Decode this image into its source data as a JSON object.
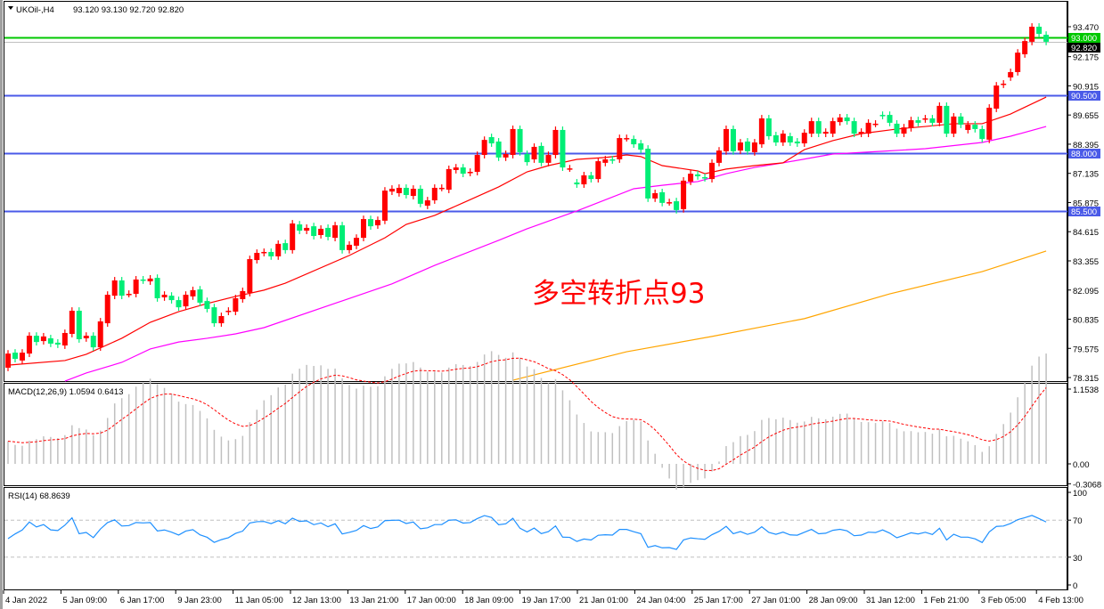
{
  "header": {
    "symbol_text": "UKOil-,H4",
    "ohlc_text": "93.120 93.130 92.720 92.820"
  },
  "annotation_text": "多空转折点93",
  "macd_panel": {
    "title": "MACD(12,26,9) 1.0594 0.6413",
    "ticks": [
      {
        "v": 1.1538,
        "label": "1.1538"
      },
      {
        "v": 0,
        "label": "0.00"
      },
      {
        "v": -0.3068,
        "label": "-0.3068"
      }
    ]
  },
  "rsi_panel": {
    "title": "RSI(14) 68.8639",
    "ticks": [
      {
        "v": 100,
        "label": "100"
      },
      {
        "v": 70,
        "label": "70"
      },
      {
        "v": 30,
        "label": "30"
      },
      {
        "v": 0,
        "label": "0"
      }
    ]
  },
  "chart_data": {
    "type": "candlestick",
    "symbol": "UKOil-",
    "timeframe": "H4",
    "colors": {
      "bull": "#ff0000",
      "bear": "#00ee76",
      "ma_fast": "#ff0000",
      "ma_mid": "#ff00ff",
      "ma_slow": "#ffa500",
      "macd_hist": "#c0c0c0",
      "macd_signal": "#ff0000",
      "rsi": "#1e90ff"
    },
    "price_ticks": [
      "93.470",
      "92.175",
      "90.915",
      "89.655",
      "88.395",
      "87.135",
      "85.875",
      "84.615",
      "83.355",
      "82.095",
      "80.835",
      "79.575",
      "78.315"
    ],
    "ylim": [
      78.315,
      93.47
    ],
    "time_labels": [
      "4 Jan 2022",
      "5 Jan 09:00",
      "6 Jan 17:00",
      "9 Jan 23:00",
      "11 Jan 05:00",
      "12 Jan 13:00",
      "13 Jan 21:00",
      "17 Jan 00:00",
      "18 Jan 09:00",
      "19 Jan 17:00",
      "21 Jan 01:00",
      "24 Jan 04:00",
      "25 Jan 17:00",
      "27 Jan 01:00",
      "28 Jan 09:00",
      "31 Jan 12:00",
      "1 Feb 21:00",
      "3 Feb 05:00",
      "4 Feb 13:00"
    ],
    "levels": [
      {
        "price": 93.0,
        "label": "93.000",
        "color": "#00c800",
        "label_bg": "#00c800"
      },
      {
        "price": 92.82,
        "label": "92.820",
        "color": "#c0c0c0",
        "label_bg": "#000000"
      },
      {
        "price": 90.5,
        "label": "90.500",
        "color": "#4a5ae8",
        "label_bg": "#4a5ae8"
      },
      {
        "price": 88.0,
        "label": "88.000",
        "color": "#4a5ae8",
        "label_bg": "#4a5ae8"
      },
      {
        "price": 85.5,
        "label": "85.500",
        "color": "#4a5ae8",
        "label_bg": "#4a5ae8"
      }
    ],
    "candles_open_close": [
      [
        78.74,
        79.35
      ],
      [
        79.39,
        79.12
      ],
      [
        79.05,
        79.39
      ],
      [
        79.35,
        80.12
      ],
      [
        80.12,
        79.85
      ],
      [
        79.89,
        80.09
      ],
      [
        80.01,
        79.78
      ],
      [
        79.82,
        79.74
      ],
      [
        79.7,
        80.24
      ],
      [
        80.2,
        81.2
      ],
      [
        81.2,
        79.97
      ],
      [
        80.01,
        80.12
      ],
      [
        80.12,
        79.62
      ],
      [
        79.62,
        80.74
      ],
      [
        80.66,
        81.89
      ],
      [
        81.85,
        82.51
      ],
      [
        82.51,
        81.85
      ],
      [
        81.93,
        81.93
      ],
      [
        81.93,
        82.55
      ],
      [
        82.55,
        82.51
      ],
      [
        82.47,
        82.59
      ],
      [
        82.62,
        81.74
      ],
      [
        81.78,
        81.89
      ],
      [
        81.85,
        81.66
      ],
      [
        81.66,
        81.35
      ],
      [
        81.39,
        81.89
      ],
      [
        81.82,
        82.09
      ],
      [
        82.12,
        81.55
      ],
      [
        81.62,
        81.28
      ],
      [
        81.35,
        80.66
      ],
      [
        80.66,
        80.97
      ],
      [
        81.16,
        81.2
      ],
      [
        81.16,
        81.74
      ],
      [
        81.7,
        82.05
      ],
      [
        81.97,
        83.43
      ],
      [
        83.39,
        83.7
      ],
      [
        83.7,
        83.74
      ],
      [
        83.74,
        83.55
      ],
      [
        83.55,
        84.09
      ],
      [
        84.12,
        83.82
      ],
      [
        83.82,
        84.97
      ],
      [
        84.93,
        84.66
      ],
      [
        84.66,
        84.78
      ],
      [
        84.85,
        84.43
      ],
      [
        84.47,
        84.74
      ],
      [
        84.78,
        84.39
      ],
      [
        84.35,
        84.89
      ],
      [
        84.89,
        83.82
      ],
      [
        83.82,
        84.05
      ],
      [
        84.01,
        84.35
      ],
      [
        84.35,
        85.16
      ],
      [
        85.16,
        84.85
      ],
      [
        84.89,
        85.12
      ],
      [
        85.09,
        86.39
      ],
      [
        86.35,
        86.47
      ],
      [
        86.28,
        86.51
      ],
      [
        86.51,
        86.2
      ],
      [
        86.16,
        86.47
      ],
      [
        86.47,
        85.82
      ],
      [
        85.74,
        85.97
      ],
      [
        85.97,
        86.51
      ],
      [
        86.51,
        86.51
      ],
      [
        86.43,
        87.32
      ],
      [
        87.28,
        87.39
      ],
      [
        87.39,
        87.12
      ],
      [
        87.16,
        87.2
      ],
      [
        87.2,
        87.93
      ],
      [
        87.93,
        88.58
      ],
      [
        88.7,
        88.43
      ],
      [
        88.51,
        87.82
      ],
      [
        87.82,
        87.97
      ],
      [
        87.93,
        89.05
      ],
      [
        89.05,
        88.05
      ],
      [
        87.97,
        87.62
      ],
      [
        87.74,
        88.28
      ],
      [
        88.32,
        87.59
      ],
      [
        87.59,
        87.93
      ],
      [
        87.93,
        89.01
      ],
      [
        89.01,
        87.39
      ],
      [
        87.35,
        87.35
      ],
      [
        86.74,
        86.66
      ],
      [
        86.66,
        87.05
      ],
      [
        87.05,
        86.89
      ],
      [
        86.89,
        87.66
      ],
      [
        87.59,
        87.74
      ],
      [
        87.74,
        87.7
      ],
      [
        87.74,
        88.66
      ],
      [
        88.66,
        88.66
      ],
      [
        88.62,
        88.39
      ],
      [
        88.43,
        88.16
      ],
      [
        88.2,
        86.05
      ],
      [
        86.05,
        86.28
      ],
      [
        86.32,
        85.86
      ],
      [
        85.89,
        85.89
      ],
      [
        85.93,
        85.55
      ],
      [
        85.59,
        86.82
      ],
      [
        86.78,
        87.12
      ],
      [
        87.09,
        87.01
      ],
      [
        86.97,
        86.93
      ],
      [
        86.89,
        87.59
      ],
      [
        87.59,
        88.12
      ],
      [
        88.09,
        89.05
      ],
      [
        89.05,
        88.09
      ],
      [
        88.12,
        88.47
      ],
      [
        88.51,
        88.09
      ],
      [
        88.05,
        88.47
      ],
      [
        88.39,
        89.51
      ],
      [
        89.51,
        88.74
      ],
      [
        88.78,
        88.47
      ],
      [
        88.47,
        88.85
      ],
      [
        88.74,
        88.47
      ],
      [
        88.51,
        88.43
      ],
      [
        88.43,
        88.89
      ],
      [
        88.85,
        89.39
      ],
      [
        89.39,
        88.85
      ],
      [
        88.85,
        88.93
      ],
      [
        88.85,
        89.39
      ],
      [
        89.35,
        89.55
      ],
      [
        89.55,
        89.39
      ],
      [
        89.39,
        88.85
      ],
      [
        88.85,
        88.93
      ],
      [
        88.85,
        89.32
      ],
      [
        89.28,
        89.28
      ],
      [
        89.66,
        89.62
      ],
      [
        89.66,
        89.32
      ],
      [
        89.28,
        88.85
      ],
      [
        88.85,
        89.12
      ],
      [
        89.09,
        89.43
      ],
      [
        89.43,
        89.32
      ],
      [
        89.47,
        89.51
      ],
      [
        89.51,
        89.32
      ],
      [
        89.32,
        90.05
      ],
      [
        90.05,
        88.85
      ],
      [
        88.85,
        89.59
      ],
      [
        89.59,
        89.24
      ],
      [
        89.01,
        89.24
      ],
      [
        89.24,
        89.05
      ],
      [
        89.05,
        88.62
      ],
      [
        88.59,
        89.97
      ],
      [
        89.93,
        90.93
      ],
      [
        90.97,
        91.01
      ],
      [
        91.28,
        91.51
      ],
      [
        91.51,
        92.35
      ],
      [
        92.28,
        92.85
      ],
      [
        92.82,
        93.47
      ],
      [
        93.47,
        93.16
      ],
      [
        93.12,
        92.82
      ]
    ],
    "ma_fast_points": [
      [
        1,
        78.85
      ],
      [
        9,
        79.05
      ],
      [
        12,
        79.32
      ],
      [
        17,
        80.01
      ],
      [
        21,
        80.7
      ],
      [
        25,
        81.16
      ],
      [
        29,
        81.51
      ],
      [
        33,
        81.82
      ],
      [
        37,
        82.09
      ],
      [
        40,
        82.39
      ],
      [
        49,
        83.59
      ],
      [
        54,
        84.35
      ],
      [
        57,
        84.93
      ],
      [
        61,
        85.32
      ],
      [
        65,
        85.86
      ],
      [
        70,
        86.55
      ],
      [
        74,
        87.2
      ],
      [
        77,
        87.47
      ],
      [
        81,
        87.74
      ],
      [
        85,
        87.82
      ],
      [
        88,
        87.93
      ],
      [
        90,
        87.86
      ],
      [
        93,
        87.47
      ],
      [
        98,
        87.24
      ],
      [
        99,
        87.12
      ],
      [
        102,
        87.32
      ],
      [
        106,
        87.47
      ],
      [
        110,
        87.59
      ],
      [
        113,
        88.16
      ],
      [
        117,
        88.55
      ],
      [
        121,
        88.85
      ],
      [
        126,
        89.05
      ],
      [
        130,
        89.16
      ],
      [
        134,
        89.28
      ],
      [
        138,
        89.28
      ],
      [
        142,
        89.7
      ],
      [
        147,
        90.43
      ]
    ],
    "ma_mid_points": [
      [
        9,
        78.16
      ],
      [
        12,
        78.51
      ],
      [
        17,
        78.97
      ],
      [
        21,
        79.55
      ],
      [
        25,
        79.85
      ],
      [
        29,
        80.01
      ],
      [
        33,
        80.2
      ],
      [
        37,
        80.47
      ],
      [
        55,
        82.36
      ],
      [
        61,
        83.16
      ],
      [
        70,
        84.24
      ],
      [
        74,
        84.74
      ],
      [
        81,
        85.51
      ],
      [
        89,
        86.47
      ],
      [
        93,
        86.62
      ],
      [
        98,
        86.78
      ],
      [
        102,
        87.12
      ],
      [
        106,
        87.39
      ],
      [
        110,
        87.59
      ],
      [
        117,
        87.97
      ],
      [
        124,
        88.09
      ],
      [
        130,
        88.2
      ],
      [
        138,
        88.47
      ],
      [
        142,
        88.74
      ],
      [
        147,
        89.16
      ]
    ],
    "ma_slow_points": [
      [
        72,
        78.2
      ],
      [
        88,
        79.43
      ],
      [
        100,
        80.09
      ],
      [
        113,
        80.86
      ],
      [
        125,
        81.93
      ],
      [
        138,
        82.89
      ],
      [
        147,
        83.78
      ]
    ]
  }
}
